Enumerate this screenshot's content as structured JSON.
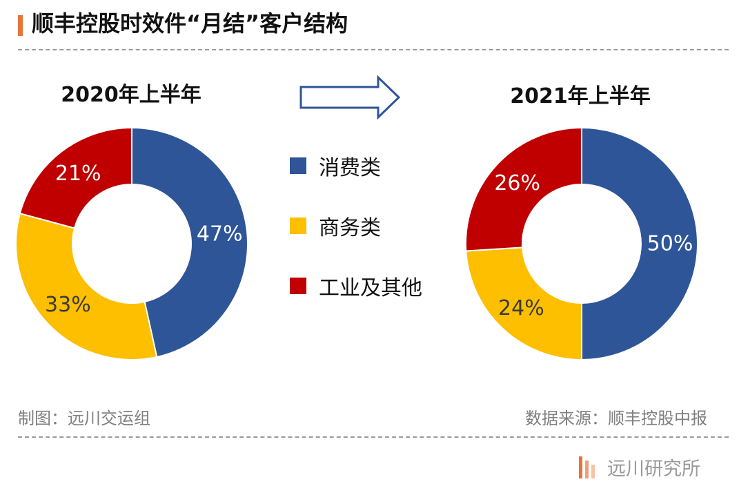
{
  "header": {
    "title": "顺丰控股时效件“月结”客户结构"
  },
  "colors": {
    "accent": "#e8743b",
    "consumer": "#2e5597",
    "business": "#fdbf00",
    "industrial": "#c00000",
    "arrow_stroke": "#2e5597",
    "footer_text": "#7f7f7f"
  },
  "chart_data": [
    {
      "type": "pie",
      "title": "2020年上半年",
      "categories": [
        "消费类",
        "商务类",
        "工业及其他"
      ],
      "values": [
        47,
        33,
        21
      ],
      "labels": [
        "47%",
        "33%",
        "21%"
      ],
      "donut": true
    },
    {
      "type": "pie",
      "title": "2021年上半年",
      "categories": [
        "消费类",
        "商务类",
        "工业及其他"
      ],
      "values": [
        50,
        24,
        26
      ],
      "labels": [
        "50%",
        "24%",
        "26%"
      ],
      "donut": true
    }
  ],
  "legend": {
    "items": [
      {
        "label": "消费类",
        "color": "#2e5597"
      },
      {
        "label": "商务类",
        "color": "#fdbf00"
      },
      {
        "label": "工业及其他",
        "color": "#c00000"
      }
    ]
  },
  "footer": {
    "left": "制图：远川交运组",
    "right": "数据来源：顺丰控股中报"
  },
  "brand": {
    "name": "远川研究所"
  }
}
